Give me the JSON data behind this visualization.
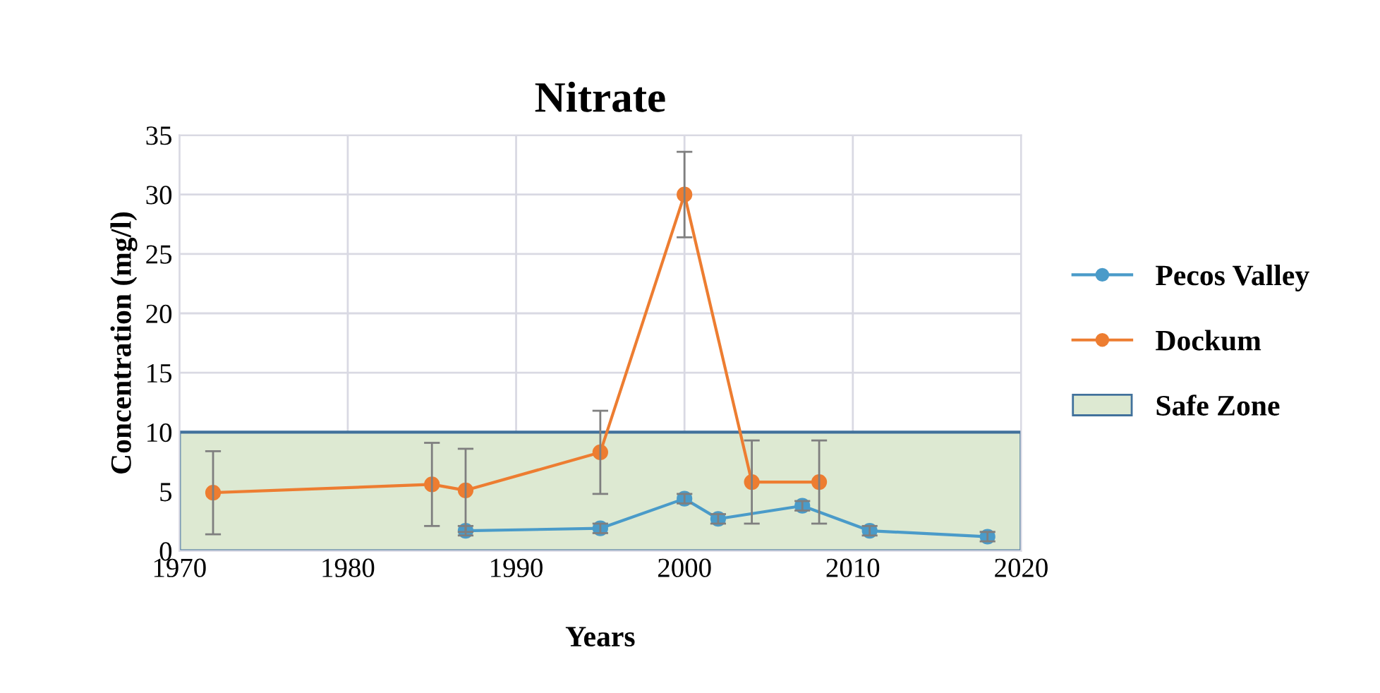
{
  "chart_data": {
    "type": "line",
    "title": "Nitrate",
    "xlabel": "Years",
    "ylabel": "Concentration (mg/l)",
    "xlim": [
      1970,
      2020
    ],
    "xticks": [
      1970,
      1980,
      1990,
      2000,
      2010,
      2020
    ],
    "ylim": [
      0,
      35
    ],
    "yticks": [
      0,
      5,
      10,
      15,
      20,
      25,
      30,
      35
    ],
    "grid": true,
    "legend": "right",
    "marker": "circle",
    "line_style": "solid",
    "series": [
      {
        "name": "Pecos Valley",
        "color": "#4a9bc9",
        "x": [
          1987,
          1995,
          2000,
          2002,
          2007,
          2011,
          2018
        ],
        "values": [
          1.7,
          1.9,
          4.4,
          2.7,
          3.8,
          1.7,
          1.2
        ],
        "errors": [
          0.4,
          0.4,
          0.4,
          0.4,
          0.4,
          0.4,
          0.4
        ]
      },
      {
        "name": "Dockum",
        "color": "#ed7d31",
        "x": [
          1972,
          1985,
          1987,
          1995,
          2000,
          2004,
          2008
        ],
        "values": [
          4.9,
          5.6,
          5.1,
          8.3,
          30,
          5.8,
          5.8
        ],
        "errors": [
          3.5,
          3.5,
          3.5,
          3.5,
          3.6,
          3.5,
          3.5
        ]
      }
    ],
    "bands": [
      {
        "axis": "y",
        "from": 0,
        "to": 10,
        "label": "Safe Zone",
        "color": "#dde9d2"
      }
    ]
  }
}
